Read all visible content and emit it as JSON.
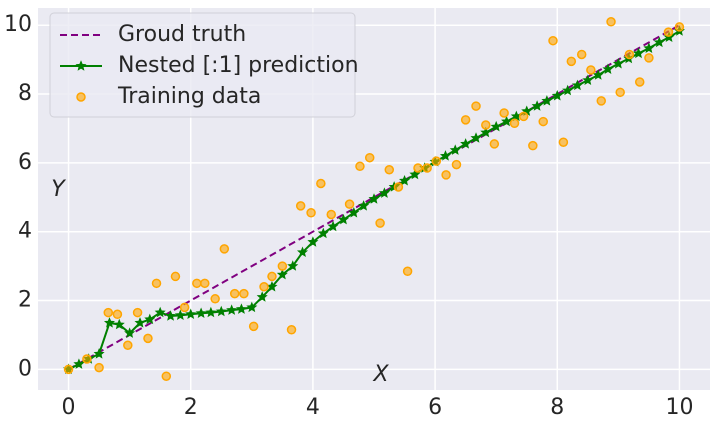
{
  "chart_data": {
    "type": "line",
    "xlabel": "X",
    "ylabel": "Y",
    "xlim": [
      -0.5,
      10.5
    ],
    "ylim": [
      -0.6,
      10.5
    ],
    "xticks": [
      0,
      2,
      4,
      6,
      8,
      10
    ],
    "yticks": [
      0,
      2,
      4,
      6,
      8,
      10
    ],
    "grid": true,
    "legend": "upper left",
    "series": [
      {
        "name": "Groud truth",
        "color": "#800080",
        "linestyle": "dashed",
        "x": [
          0,
          10
        ],
        "values": [
          0,
          10
        ]
      },
      {
        "name": "Nested [:1] prediction",
        "color": "#008000",
        "linestyle": "solid",
        "marker": "star",
        "x": [
          0,
          0.17,
          0.33,
          0.5,
          0.67,
          0.83,
          1.0,
          1.17,
          1.33,
          1.5,
          1.67,
          1.83,
          2.0,
          2.17,
          2.33,
          2.5,
          2.67,
          2.83,
          3.0,
          3.17,
          3.33,
          3.5,
          3.67,
          3.83,
          4.0,
          4.17,
          4.33,
          4.5,
          4.67,
          4.83,
          5.0,
          5.17,
          5.33,
          5.5,
          5.67,
          5.83,
          6.0,
          6.17,
          6.33,
          6.5,
          6.67,
          6.83,
          7.0,
          7.17,
          7.33,
          7.5,
          7.67,
          7.83,
          8.0,
          8.17,
          8.33,
          8.5,
          8.67,
          8.83,
          9.0,
          9.17,
          9.33,
          9.5,
          9.67,
          9.83,
          10
        ],
        "values": [
          0,
          0.15,
          0.3,
          0.45,
          1.35,
          1.3,
          1.05,
          1.35,
          1.45,
          1.65,
          1.55,
          1.57,
          1.6,
          1.63,
          1.65,
          1.68,
          1.72,
          1.75,
          1.8,
          2.1,
          2.4,
          2.75,
          3.0,
          3.4,
          3.7,
          3.95,
          4.15,
          4.35,
          4.55,
          4.75,
          4.95,
          5.12,
          5.3,
          5.48,
          5.66,
          5.85,
          6.03,
          6.2,
          6.37,
          6.55,
          6.72,
          6.88,
          7.05,
          7.2,
          7.35,
          7.5,
          7.65,
          7.8,
          7.95,
          8.1,
          8.25,
          8.4,
          8.55,
          8.72,
          8.88,
          9.03,
          9.18,
          9.33,
          9.5,
          9.65,
          9.83
        ]
      },
      {
        "name": "Training data",
        "color": "#ffa500",
        "marker": "circle",
        "x": [
          0,
          0.3,
          0.5,
          0.65,
          0.8,
          0.97,
          1.13,
          1.3,
          1.44,
          1.6,
          1.75,
          1.9,
          2.1,
          2.23,
          2.4,
          2.55,
          2.72,
          2.87,
          3.03,
          3.2,
          3.33,
          3.5,
          3.65,
          3.8,
          3.97,
          4.13,
          4.3,
          4.6,
          4.77,
          4.93,
          5.1,
          5.25,
          5.4,
          5.55,
          5.72,
          5.87,
          6.02,
          6.18,
          6.35,
          6.5,
          6.67,
          6.83,
          6.97,
          7.13,
          7.3,
          7.45,
          7.6,
          7.77,
          7.93,
          8.1,
          8.23,
          8.4,
          8.55,
          8.72,
          8.88,
          9.03,
          9.18,
          9.35,
          9.5,
          9.82,
          10
        ],
        "values": [
          0,
          0.3,
          0.05,
          1.65,
          1.6,
          0.7,
          1.65,
          0.9,
          2.5,
          -0.2,
          2.7,
          1.8,
          2.5,
          2.5,
          2.05,
          3.5,
          2.2,
          2.2,
          1.25,
          2.4,
          2.7,
          3.0,
          1.15,
          4.75,
          4.55,
          5.4,
          4.5,
          4.8,
          5.9,
          6.15,
          4.25,
          5.8,
          5.3,
          2.85,
          5.85,
          5.85,
          6.05,
          5.65,
          5.95,
          7.25,
          7.65,
          7.1,
          6.55,
          7.45,
          7.15,
          7.35,
          6.5,
          7.2,
          9.55,
          6.6,
          8.95,
          9.15,
          8.7,
          7.8,
          10.1,
          8.05,
          9.15,
          8.35,
          9.05,
          9.8,
          9.95
        ]
      }
    ]
  }
}
